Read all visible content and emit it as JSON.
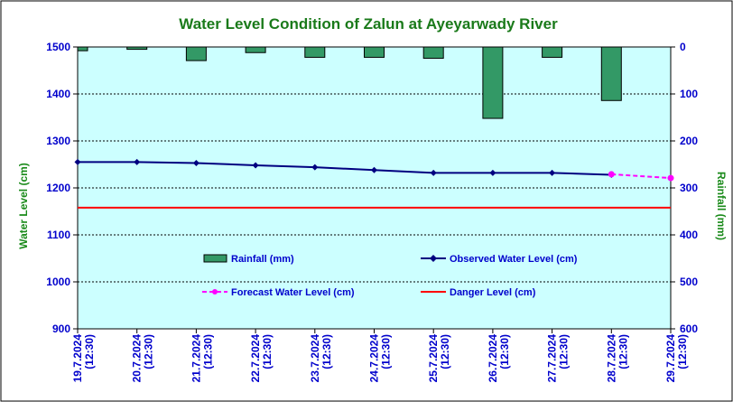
{
  "chart_data": {
    "type": "bar+line",
    "title": "Water Level Condition of Zalun at Ayeyarwady River",
    "ylabel": "Water Level (cm)",
    "y2label": "Rainfall (mm)",
    "ylim": [
      900,
      1500
    ],
    "yticks": [
      "1500",
      "1400",
      "1300",
      "1200",
      "1100",
      "1000",
      "900"
    ],
    "y2lim": [
      0,
      600
    ],
    "y2ticks": [
      "0",
      "100",
      "200",
      "300",
      "400",
      "500",
      "600"
    ],
    "categories": [
      "19.7.2024 (12:30)",
      "20.7.2024 (12:30)",
      "21.7.2024 (12:30)",
      "22.7.2024 (12:30)",
      "23.7.2024 (12:30)",
      "24.7.2024 (12:30)",
      "25.7.2024 (12:30)",
      "26.7.2024 (12:30)",
      "27.7.2024 (12:30)",
      "28.7.2024 (12:30)",
      "29.7.2024 (12:30)"
    ],
    "rainfall": [
      8,
      5,
      29,
      12,
      22,
      22,
      24,
      152,
      22,
      114,
      null
    ],
    "observed": [
      1255,
      1255,
      1253,
      1248,
      1244,
      1238,
      1232,
      1232,
      1232,
      1228,
      null
    ],
    "forecast": [
      null,
      null,
      null,
      null,
      null,
      null,
      null,
      null,
      null,
      1229,
      1221
    ],
    "danger_level": 1158,
    "legend": {
      "rainfall": "Rainfall (mm)",
      "observed": "Observed Water Level (cm)",
      "forecast": "Forecast Water Level (cm)",
      "danger": "Danger Level (cm)"
    },
    "legend_placement": "inside-lower-center",
    "grid": true,
    "colors": {
      "plot_bg": "#ccffff",
      "rainfall": "#339966",
      "observed": "#000080",
      "forecast": "#ff00ff",
      "danger": "#ff0000",
      "title": "#1a7a1a",
      "ticks": "#0000cc"
    }
  }
}
